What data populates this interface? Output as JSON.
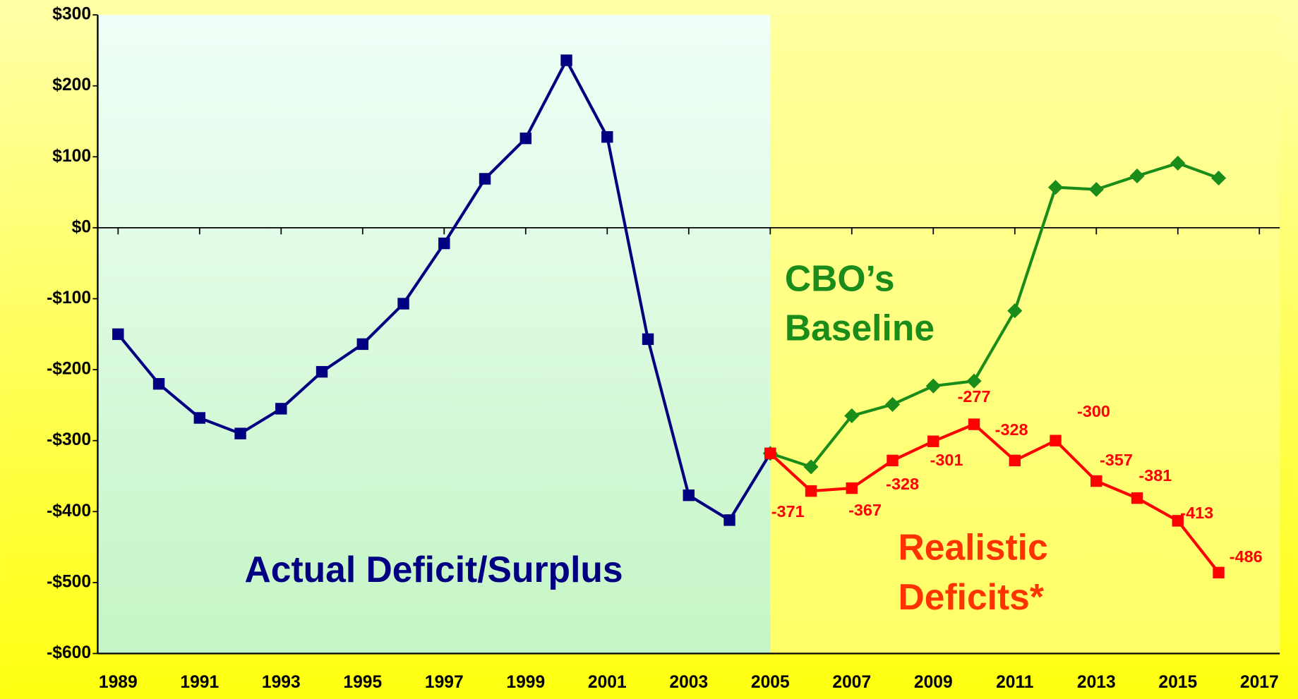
{
  "chart_data": {
    "type": "line",
    "x": [
      1989,
      1990,
      1991,
      1992,
      1993,
      1994,
      1995,
      1996,
      1997,
      1998,
      1999,
      2000,
      2001,
      2002,
      2003,
      2004,
      2005,
      2006,
      2007,
      2008,
      2009,
      2010,
      2011,
      2012,
      2013,
      2014,
      2015,
      2016
    ],
    "series": [
      {
        "name": "Actual Deficit/Surplus",
        "color": "#000080",
        "marker": "square",
        "values": [
          -150,
          -220,
          -268,
          -290,
          -255,
          -203,
          -164,
          -107,
          -22,
          69,
          126,
          236,
          128,
          -157,
          -377,
          -412,
          -318,
          null,
          null,
          null,
          null,
          null,
          null,
          null,
          null,
          null,
          null,
          null
        ]
      },
      {
        "name": "CBO’s Baseline",
        "color": "#1a8c1a",
        "marker": "diamond",
        "values": [
          null,
          null,
          null,
          null,
          null,
          null,
          null,
          null,
          null,
          null,
          null,
          null,
          null,
          null,
          null,
          null,
          -318,
          -337,
          -265,
          -249,
          -223,
          -216,
          -117,
          57,
          54,
          73,
          91,
          70
        ]
      },
      {
        "name": "Realistic Deficits*",
        "color": "#ff0000",
        "marker": "square",
        "values": [
          null,
          null,
          null,
          null,
          null,
          null,
          null,
          null,
          null,
          null,
          null,
          null,
          null,
          null,
          null,
          null,
          -318,
          -371,
          -367,
          -328,
          -301,
          -277,
          -328,
          -300,
          -357,
          -381,
          -413,
          -486
        ],
        "value_labels": [
          null,
          null,
          null,
          null,
          null,
          null,
          null,
          null,
          null,
          null,
          null,
          null,
          null,
          null,
          null,
          null,
          null,
          "-371",
          "-367",
          "-328",
          "-301",
          "-277",
          "-328",
          "-300",
          "-357",
          "-381",
          "-413",
          "-486"
        ]
      }
    ],
    "annotations": [
      {
        "lines": [
          "Actual Deficit/Surplus"
        ],
        "color": "#000080"
      },
      {
        "lines": [
          "CBO’s",
          "Baseline"
        ],
        "color": "#1a8c1a"
      },
      {
        "lines": [
          "Realistic",
          "Deficits*"
        ],
        "color": "#ff3300"
      }
    ],
    "xlim": [
      1988.5,
      2017.5
    ],
    "xticks": [
      1989,
      1991,
      1993,
      1995,
      1997,
      1999,
      2001,
      2003,
      2005,
      2007,
      2009,
      2011,
      2013,
      2015,
      2017
    ],
    "ylim": [
      -600,
      300
    ],
    "yticks": [
      {
        "value": -600,
        "label": "-$600"
      },
      {
        "value": -500,
        "label": "-$500"
      },
      {
        "value": -400,
        "label": "-$400"
      },
      {
        "value": -300,
        "label": "-$300"
      },
      {
        "value": -200,
        "label": "-$200"
      },
      {
        "value": -100,
        "label": "-$100"
      },
      {
        "value": 0,
        "label": "$0"
      },
      {
        "value": 100,
        "label": "$100"
      },
      {
        "value": 200,
        "label": "$200"
      },
      {
        "value": 300,
        "label": "$300"
      }
    ]
  }
}
